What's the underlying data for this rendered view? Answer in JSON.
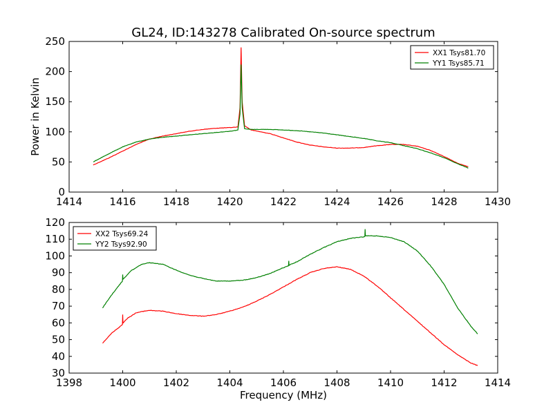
{
  "figure_title": "GL24, ID:143278 Calibrated On-source spectrum",
  "chart_data": [
    {
      "type": "line",
      "title": "GL24, ID:143278 Calibrated On-source spectrum",
      "xlabel": "",
      "ylabel": "Power in Kelvin",
      "xlim": [
        1414,
        1430
      ],
      "ylim": [
        0,
        250
      ],
      "xticks": [
        1414,
        1416,
        1418,
        1420,
        1422,
        1424,
        1426,
        1428,
        1430
      ],
      "yticks": [
        0,
        50,
        100,
        150,
        200,
        250
      ],
      "grid": false,
      "legend_position": "top-right",
      "series": [
        {
          "name": "XX1 Tsys81.70",
          "color": "#ff0000",
          "x": [
            1414.9,
            1415.5,
            1416.0,
            1416.5,
            1417.0,
            1417.5,
            1418.0,
            1418.5,
            1419.0,
            1419.5,
            1420.0,
            1420.3,
            1420.38,
            1420.42,
            1420.46,
            1420.55,
            1420.8,
            1421.5,
            1422.0,
            1422.5,
            1423.0,
            1423.5,
            1424.0,
            1424.5,
            1425.0,
            1425.5,
            1426.0,
            1426.5,
            1427.0,
            1427.5,
            1428.0,
            1428.5,
            1428.9
          ],
          "values": [
            45,
            57,
            68,
            79,
            88,
            93,
            97,
            101,
            104,
            106,
            107,
            108,
            140,
            240,
            150,
            110,
            103,
            97,
            90,
            83,
            78,
            75,
            73,
            73,
            74,
            77,
            79,
            79,
            76,
            69,
            59,
            48,
            42
          ]
        },
        {
          "name": "YY1 Tsys85.71",
          "color": "#008000",
          "x": [
            1414.9,
            1415.5,
            1416.0,
            1416.5,
            1417.0,
            1417.5,
            1418.0,
            1418.5,
            1419.0,
            1419.5,
            1420.0,
            1420.3,
            1420.38,
            1420.42,
            1420.46,
            1420.55,
            1420.8,
            1421.5,
            1422.0,
            1422.5,
            1423.0,
            1423.5,
            1424.0,
            1424.5,
            1425.0,
            1425.5,
            1426.0,
            1426.5,
            1427.0,
            1427.5,
            1428.0,
            1428.5,
            1428.9
          ],
          "values": [
            50,
            64,
            75,
            83,
            88,
            91,
            93,
            95,
            97,
            99,
            101,
            103,
            130,
            212,
            140,
            105,
            104,
            104,
            103,
            102,
            100,
            98,
            95,
            92,
            89,
            85,
            82,
            77,
            72,
            65,
            57,
            47,
            40
          ]
        }
      ]
    },
    {
      "type": "line",
      "title": "",
      "xlabel": "Frequency (MHz)",
      "ylabel": "",
      "xlim": [
        1398,
        1414
      ],
      "ylim": [
        30,
        120
      ],
      "xticks": [
        1398,
        1400,
        1402,
        1404,
        1406,
        1408,
        1410,
        1412,
        1414
      ],
      "yticks": [
        30,
        40,
        50,
        60,
        70,
        80,
        90,
        100,
        110,
        120
      ],
      "grid": false,
      "legend_position": "top-left",
      "series": [
        {
          "name": "XX2 Tsys69.24",
          "color": "#ff0000",
          "x": [
            1399.25,
            1399.6,
            1399.99,
            1400.0,
            1400.01,
            1400.2,
            1400.5,
            1400.8,
            1401.0,
            1401.5,
            1402.0,
            1402.5,
            1403.0,
            1403.5,
            1404.0,
            1404.5,
            1405.0,
            1405.5,
            1406.0,
            1406.5,
            1407.0,
            1407.5,
            1408.0,
            1408.5,
            1409.0,
            1409.5,
            1410.0,
            1410.5,
            1411.0,
            1411.5,
            1412.0,
            1412.5,
            1413.0,
            1413.25
          ],
          "values": [
            48,
            54,
            59,
            65,
            60,
            63,
            66,
            67,
            67.5,
            67,
            65.5,
            64.5,
            64,
            65,
            67,
            69.5,
            73,
            77,
            81.5,
            86,
            90,
            92.5,
            93.5,
            92,
            88,
            82,
            75,
            68,
            61,
            54,
            47,
            41,
            36,
            34.5
          ]
        },
        {
          "name": "YY2 Tsys92.90",
          "color": "#008000",
          "x": [
            1399.25,
            1399.6,
            1399.99,
            1400.0,
            1400.01,
            1400.3,
            1400.7,
            1401.0,
            1401.5,
            1402.0,
            1402.5,
            1403.0,
            1403.5,
            1404.0,
            1404.5,
            1405.0,
            1405.5,
            1406.0,
            1406.19,
            1406.2,
            1406.21,
            1406.5,
            1407.0,
            1407.5,
            1408.0,
            1408.5,
            1409.04,
            1409.05,
            1409.06,
            1409.5,
            1410.0,
            1410.5,
            1411.0,
            1411.5,
            1412.0,
            1412.5,
            1413.0,
            1413.25
          ],
          "values": [
            69,
            77,
            85,
            89,
            86,
            91,
            95,
            96,
            95,
            91.5,
            88.5,
            86.5,
            85,
            85,
            85.5,
            87,
            89.5,
            93,
            94,
            97,
            94.5,
            96.5,
            101,
            105,
            108.5,
            110.5,
            111.5,
            116,
            112,
            112,
            111,
            108.5,
            103,
            94,
            83,
            69,
            58,
            53.5
          ]
        }
      ]
    }
  ]
}
